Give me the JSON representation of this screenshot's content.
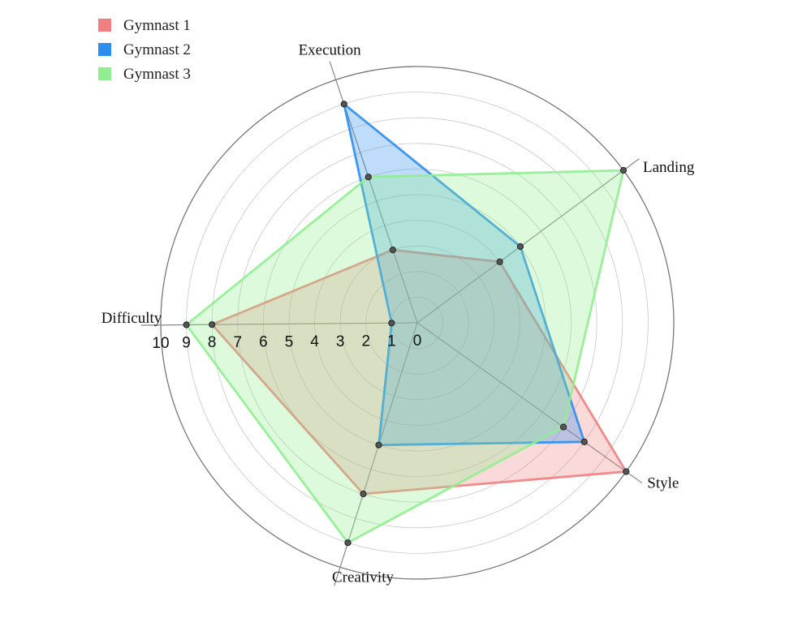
{
  "chart_data": {
    "type": "radar",
    "axes": [
      "Execution",
      "Landing",
      "Style",
      "Creativity",
      "Difficulty"
    ],
    "range": [
      0,
      10
    ],
    "ticks": [
      "0",
      "1",
      "2",
      "3",
      "4",
      "5",
      "6",
      "7",
      "8",
      "9",
      "10"
    ],
    "grid": true,
    "legend_position": "top-left",
    "series": [
      {
        "name": "Gymnast 1",
        "values": [
          3,
          4,
          10,
          7,
          8
        ],
        "color": "#f08080"
      },
      {
        "name": "Gymnast 2",
        "values": [
          9,
          5,
          8,
          5,
          1
        ],
        "color": "#2b8ef0"
      },
      {
        "name": "Gymnast 3",
        "values": [
          6,
          10,
          7,
          9,
          9
        ],
        "color": "#90ee90"
      }
    ]
  }
}
